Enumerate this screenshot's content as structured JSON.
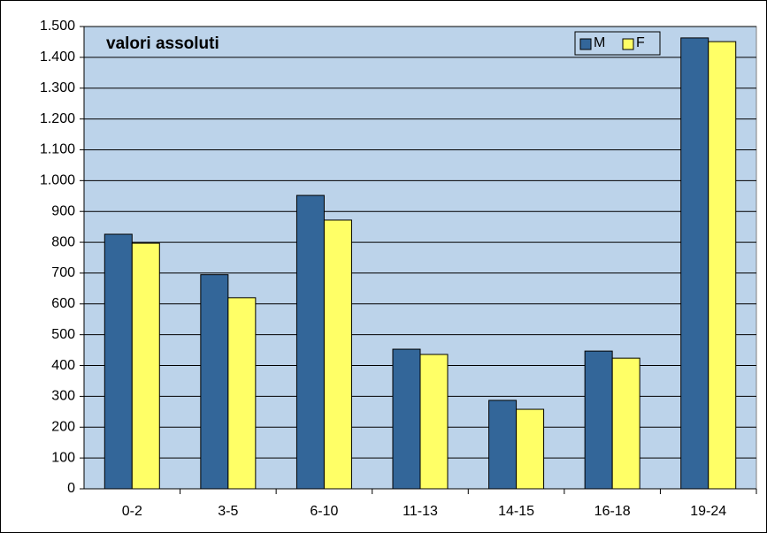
{
  "chart_data": {
    "type": "bar",
    "annotation": "valori assoluti",
    "categories": [
      "0-2",
      "3-5",
      "6-10",
      "11-13",
      "14-15",
      "16-18",
      "19-24"
    ],
    "series": [
      {
        "name": "M",
        "color": "#336699",
        "values": [
          826,
          695,
          952,
          453,
          287,
          447,
          1463
        ]
      },
      {
        "name": "F",
        "color": "#ffff66",
        "values": [
          797,
          620,
          872,
          436,
          258,
          424,
          1451
        ]
      }
    ],
    "ylim": [
      0,
      1500
    ],
    "yticks": [
      0,
      100,
      200,
      300,
      400,
      500,
      600,
      700,
      800,
      900,
      {
        "value": 1000,
        "label": "1.000"
      },
      {
        "value": 1100,
        "label": "1.100"
      },
      {
        "value": 1200,
        "label": "1.200"
      },
      {
        "value": 1300,
        "label": "1.300"
      },
      {
        "value": 1400,
        "label": "1.400"
      },
      {
        "value": 1500,
        "label": "1.500"
      }
    ],
    "grid": true,
    "legend": "top-right"
  }
}
